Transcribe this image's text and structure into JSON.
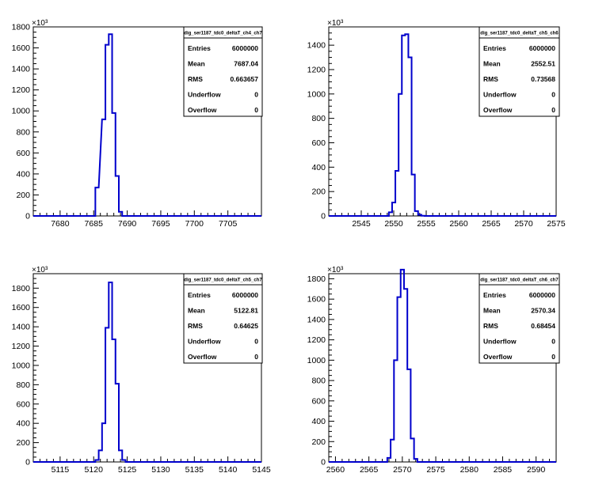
{
  "chart_data": [
    {
      "type": "bar",
      "histogram": true,
      "stats_title": "dig_ser1187_tdc0_deltaT_ch4_ch7",
      "multiplier": "×10³",
      "x": [
        7685.5,
        7686.5,
        7687.0,
        7687.5,
        7688.0,
        7688.5,
        7689.0
      ],
      "values": [
        270,
        920,
        1630,
        1730,
        980,
        380,
        40
      ],
      "bin_width": 0.5,
      "xlim": [
        7676,
        7710
      ],
      "ylim": [
        0,
        1800
      ],
      "xticks": [
        7680,
        7685,
        7690,
        7695,
        7700,
        7705
      ],
      "yticks": [
        0,
        200,
        400,
        600,
        800,
        1000,
        1200,
        1400,
        1600,
        1800
      ],
      "stats": [
        {
          "label": "Entries",
          "value": "6000000"
        },
        {
          "label": "Mean",
          "value": "7687.04"
        },
        {
          "label": "RMS",
          "value": "0.663657"
        },
        {
          "label": "Underflow",
          "value": "0"
        },
        {
          "label": "Overflow",
          "value": "0"
        }
      ]
    },
    {
      "type": "bar",
      "histogram": true,
      "stats_title": "dig_ser1187_tdc0_deltaT_ch5_ch6",
      "multiplier": "×10³",
      "x": [
        2549.5,
        2550.0,
        2550.5,
        2551.0,
        2551.5,
        2552.0,
        2552.5,
        2553.0,
        2553.5,
        2554.0,
        2554.5
      ],
      "values": [
        30,
        110,
        370,
        1000,
        1480,
        1490,
        1300,
        340,
        40,
        10,
        2
      ],
      "bin_width": 0.5,
      "xlim": [
        2540,
        2575
      ],
      "ylim": [
        0,
        1550
      ],
      "xticks": [
        2545,
        2550,
        2555,
        2560,
        2565,
        2570,
        2575
      ],
      "yticks": [
        0,
        200,
        400,
        600,
        800,
        1000,
        1200,
        1400
      ],
      "stats": [
        {
          "label": "Entries",
          "value": "6000000"
        },
        {
          "label": "Mean",
          "value": "2552.51"
        },
        {
          "label": "RMS",
          "value": "0.73568"
        },
        {
          "label": "Underflow",
          "value": "0"
        },
        {
          "label": "Overflow",
          "value": "0"
        }
      ]
    },
    {
      "type": "bar",
      "histogram": true,
      "stats_title": "dig_ser1187_tdc0_deltaT_ch5_ch7",
      "multiplier": "×10³",
      "x": [
        5120.5,
        5121.0,
        5121.5,
        5122.0,
        5122.5,
        5123.0,
        5123.5,
        5124.0,
        5124.5
      ],
      "values": [
        20,
        120,
        400,
        1390,
        1860,
        1270,
        810,
        120,
        20
      ],
      "bin_width": 0.5,
      "xlim": [
        5111,
        5145
      ],
      "ylim": [
        0,
        1950
      ],
      "xticks": [
        5115,
        5120,
        5125,
        5130,
        5135,
        5140,
        5145
      ],
      "yticks": [
        0,
        200,
        400,
        600,
        800,
        1000,
        1200,
        1400,
        1600,
        1800
      ],
      "stats": [
        {
          "label": "Entries",
          "value": "6000000"
        },
        {
          "label": "Mean",
          "value": "5122.81"
        },
        {
          "label": "RMS",
          "value": "0.64625"
        },
        {
          "label": "Underflow",
          "value": "0"
        },
        {
          "label": "Overflow",
          "value": "0"
        }
      ]
    },
    {
      "type": "bar",
      "histogram": true,
      "stats_title": "dig_ser1187_tdc0_deltaT_ch6_ch7",
      "multiplier": "×10³",
      "x": [
        2568.0,
        2568.5,
        2569.0,
        2569.5,
        2570.0,
        2570.5,
        2571.0,
        2571.5,
        2572.0
      ],
      "values": [
        40,
        220,
        1000,
        1620,
        1890,
        1700,
        910,
        230,
        30
      ],
      "bin_width": 0.5,
      "xlim": [
        2559,
        2593
      ],
      "ylim": [
        0,
        1850
      ],
      "xticks": [
        2560,
        2565,
        2570,
        2575,
        2580,
        2585,
        2590
      ],
      "yticks": [
        0,
        200,
        400,
        600,
        800,
        1000,
        1200,
        1400,
        1600,
        1800
      ],
      "stats": [
        {
          "label": "Entries",
          "value": "6000000"
        },
        {
          "label": "Mean",
          "value": "2570.34"
        },
        {
          "label": "RMS",
          "value": "0.68454"
        },
        {
          "label": "Underflow",
          "value": "0"
        },
        {
          "label": "Overflow",
          "value": "0"
        }
      ]
    }
  ]
}
